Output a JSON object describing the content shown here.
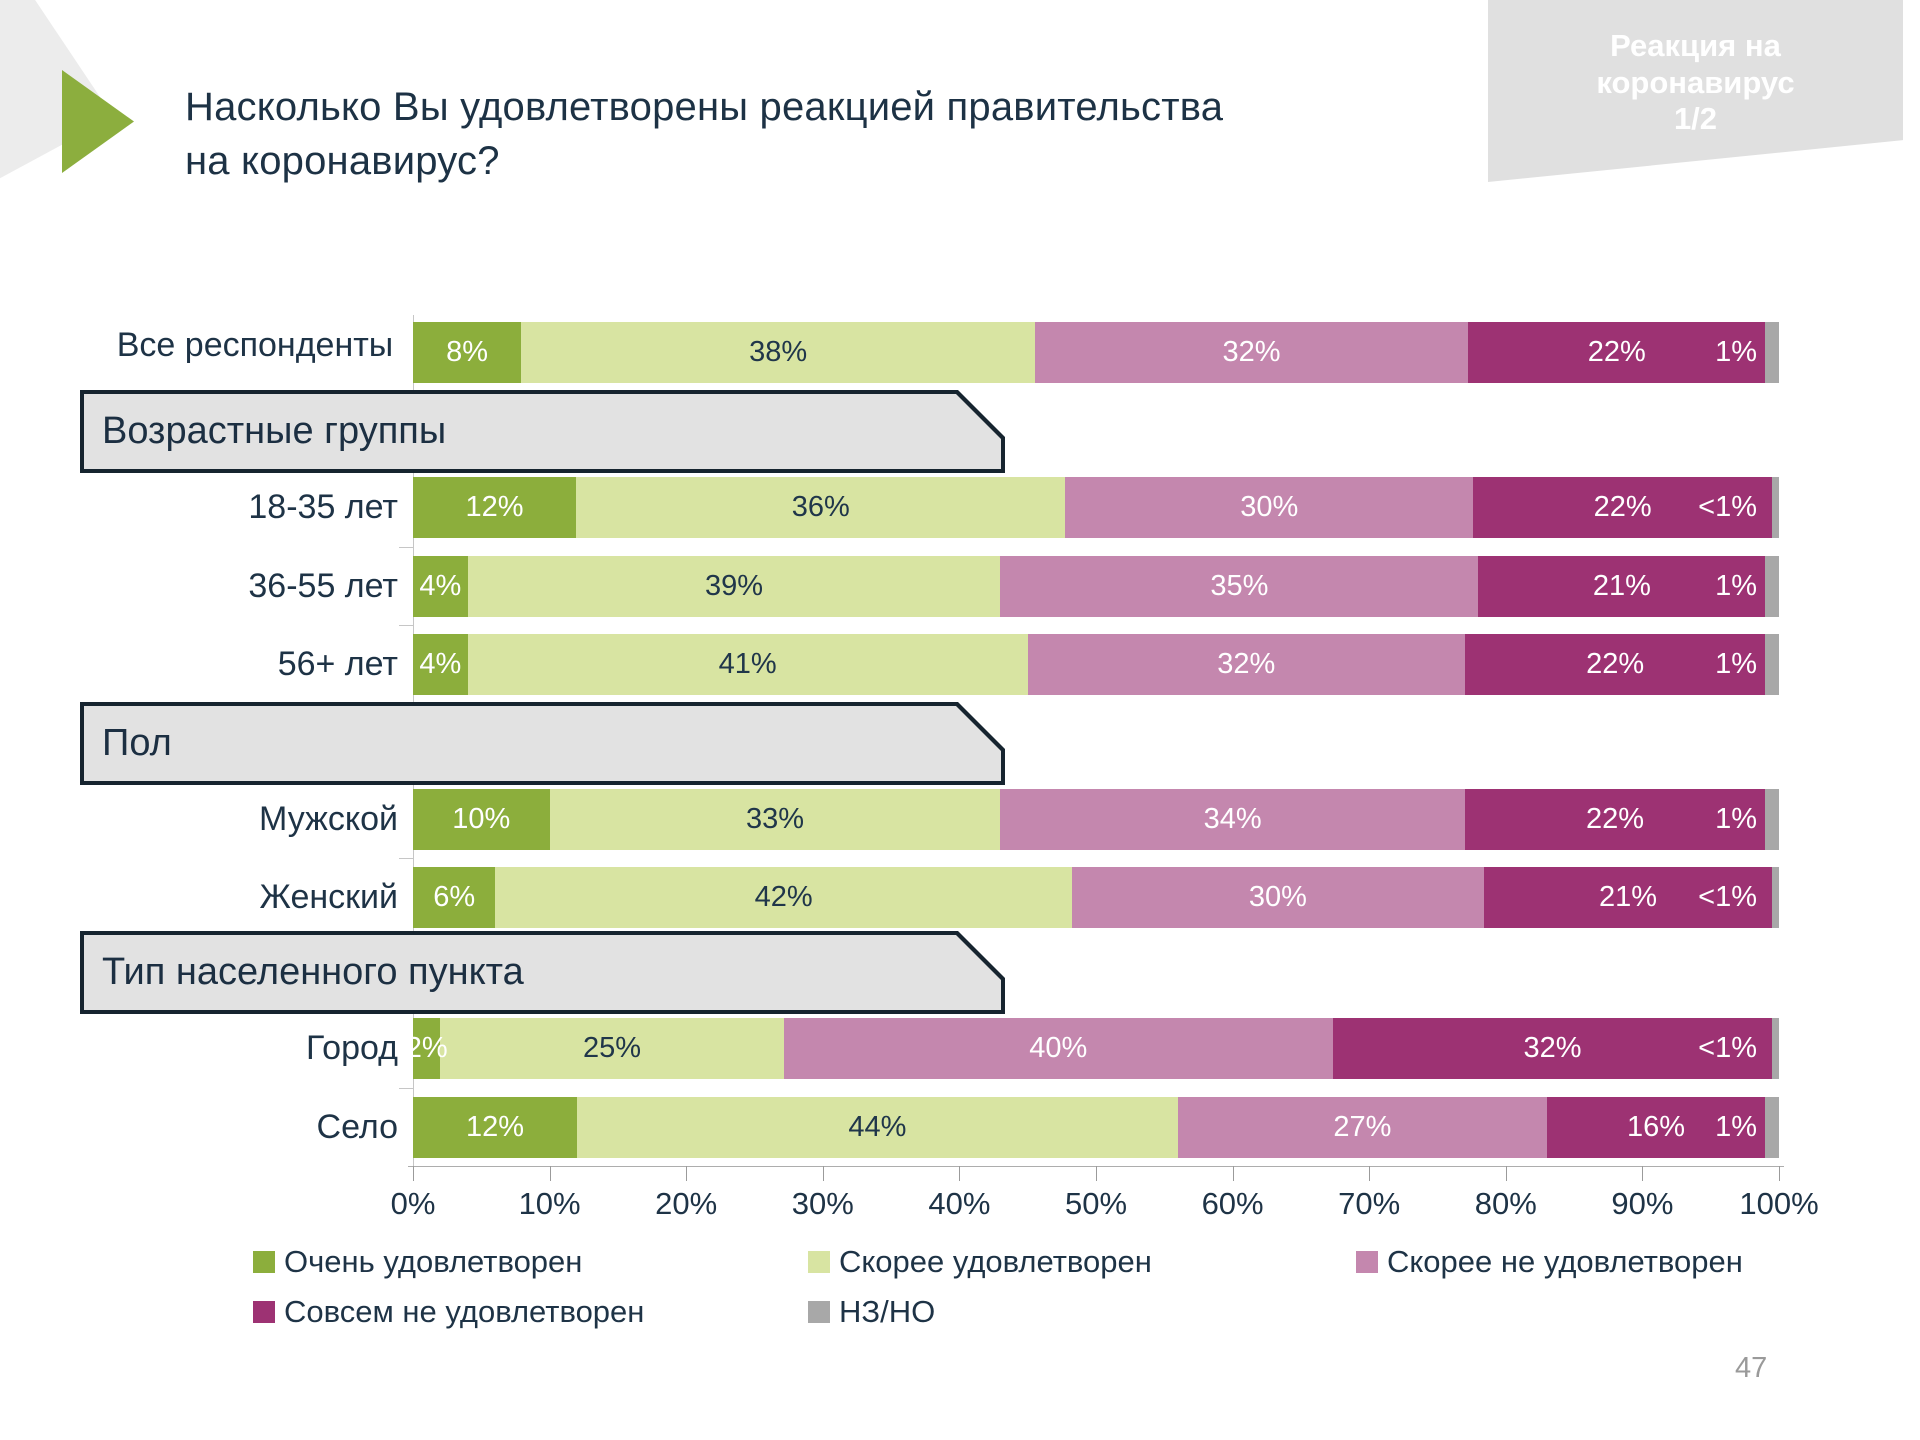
{
  "slide": {
    "title_lines": [
      "Насколько Вы удовлетворены реакцией правительства",
      "на коронавирус?"
    ],
    "badge_lines": [
      "Реакция на",
      "коронавирус",
      "1/2"
    ],
    "page_number": "47"
  },
  "colors": {
    "very_satisfied": "#8CAE3C",
    "rather_satisfied": "#D8E4A2",
    "rather_not_satisfied": "#C487AE",
    "not_satisfied": "#9D3273",
    "dk_na": "#A8A8A8",
    "text_navy": "#1E3346",
    "accent_green": "#8CAE3E",
    "header_box_fill": "#E2E2E2",
    "header_box_border": "#16242F"
  },
  "chart_data": {
    "type": "bar",
    "stacked": true,
    "orientation": "horizontal",
    "title": "Насколько Вы удовлетворены реакцией правительства на коронавирус?",
    "x_axis": {
      "range": [
        0,
        100
      ],
      "ticks": [
        "0%",
        "10%",
        "20%",
        "30%",
        "40%",
        "50%",
        "60%",
        "70%",
        "80%",
        "90%",
        "100%"
      ]
    },
    "series": [
      {
        "name": "Очень удовлетворен",
        "color_key": "very_satisfied"
      },
      {
        "name": "Скорее удовлетворен",
        "color_key": "rather_satisfied"
      },
      {
        "name": "Скорее не удовлетворен",
        "color_key": "rather_not_satisfied"
      },
      {
        "name": "Совсем не удовлетворен",
        "color_key": "not_satisfied"
      },
      {
        "name": "НЗ/НО",
        "color_key": "dk_na"
      }
    ],
    "section_headers": [
      "Возрастные группы",
      "Пол",
      "Тип населенного пункта"
    ],
    "rows": [
      {
        "label": "Все респонденты",
        "two_line": true,
        "values": [
          8,
          38,
          32,
          22,
          1
        ],
        "value_labels": [
          "8%",
          "38%",
          "32%",
          "22%",
          "1%"
        ]
      },
      {
        "label": "18-35 лет",
        "two_line": false,
        "values": [
          12,
          36,
          30,
          22,
          0.5
        ],
        "value_labels": [
          "12%",
          "36%",
          "30%",
          "22%",
          "<1%"
        ]
      },
      {
        "label": "36-55 лет",
        "two_line": false,
        "values": [
          4,
          39,
          35,
          21,
          1
        ],
        "value_labels": [
          "4%",
          "39%",
          "35%",
          "21%",
          "1%"
        ]
      },
      {
        "label": "56+ лет",
        "two_line": false,
        "values": [
          4,
          41,
          32,
          22,
          1
        ],
        "value_labels": [
          "4%",
          "41%",
          "32%",
          "22%",
          "1%"
        ]
      },
      {
        "label": "Мужской",
        "two_line": false,
        "values": [
          10,
          33,
          34,
          22,
          1
        ],
        "value_labels": [
          "10%",
          "33%",
          "34%",
          "22%",
          "1%"
        ]
      },
      {
        "label": "Женский",
        "two_line": false,
        "values": [
          6,
          42,
          30,
          21,
          0.5
        ],
        "value_labels": [
          "6%",
          "42%",
          "30%",
          "21%",
          "<1%"
        ]
      },
      {
        "label": "Город",
        "two_line": false,
        "values": [
          2,
          25,
          40,
          32,
          0.5
        ],
        "value_labels": [
          "2%",
          "25%",
          "40%",
          "32%",
          "<1%"
        ]
      },
      {
        "label": "Село",
        "two_line": false,
        "values": [
          12,
          44,
          27,
          16,
          1
        ],
        "value_labels": [
          "12%",
          "44%",
          "27%",
          "16%",
          "1%"
        ]
      }
    ]
  },
  "legend": {
    "items": [
      {
        "label": "Очень удовлетворен",
        "color_key": "very_satisfied"
      },
      {
        "label": "Скорее удовлетворен",
        "color_key": "rather_satisfied"
      },
      {
        "label": "Скорее не удовлетворен",
        "color_key": "rather_not_satisfied"
      },
      {
        "label": "Совсем не удовлетворен",
        "color_key": "not_satisfied"
      },
      {
        "label": "НЗ/НО",
        "color_key": "dk_na"
      }
    ]
  }
}
